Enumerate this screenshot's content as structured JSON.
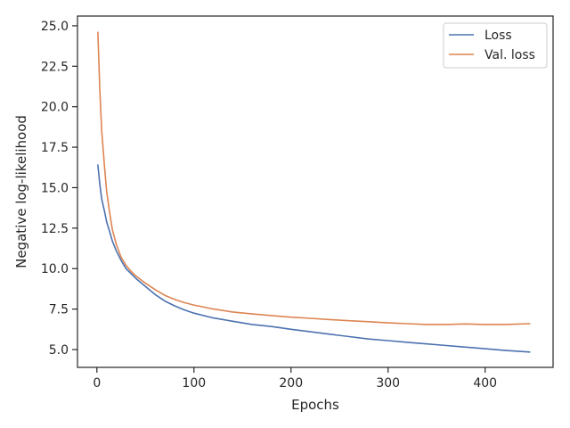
{
  "chart_data": {
    "type": "line",
    "xlabel": "Epochs",
    "ylabel": "Negative log-likelihood",
    "xlim": [
      -20,
      470
    ],
    "ylim": [
      3.9,
      25.6
    ],
    "xticks": [
      0,
      100,
      200,
      300,
      400
    ],
    "yticks": [
      5.0,
      7.5,
      10.0,
      12.5,
      15.0,
      17.5,
      20.0,
      22.5,
      25.0
    ],
    "grid": false,
    "legend": {
      "position": "upper-right"
    },
    "series": [
      {
        "name": "Loss",
        "color": "#4c72b0",
        "points": [
          [
            1,
            16.4
          ],
          [
            3,
            15.2
          ],
          [
            5,
            14.3
          ],
          [
            8,
            13.5
          ],
          [
            10,
            12.9
          ],
          [
            13,
            12.3
          ],
          [
            16,
            11.7
          ],
          [
            20,
            11.1
          ],
          [
            25,
            10.5
          ],
          [
            30,
            10.0
          ],
          [
            35,
            9.7
          ],
          [
            40,
            9.4
          ],
          [
            50,
            8.9
          ],
          [
            60,
            8.4
          ],
          [
            70,
            8.0
          ],
          [
            80,
            7.7
          ],
          [
            90,
            7.45
          ],
          [
            100,
            7.25
          ],
          [
            120,
            6.95
          ],
          [
            140,
            6.75
          ],
          [
            160,
            6.55
          ],
          [
            180,
            6.42
          ],
          [
            200,
            6.25
          ],
          [
            220,
            6.1
          ],
          [
            240,
            5.95
          ],
          [
            260,
            5.8
          ],
          [
            280,
            5.65
          ],
          [
            300,
            5.55
          ],
          [
            320,
            5.45
          ],
          [
            340,
            5.35
          ],
          [
            360,
            5.25
          ],
          [
            380,
            5.15
          ],
          [
            400,
            5.05
          ],
          [
            420,
            4.95
          ],
          [
            446,
            4.85
          ]
        ]
      },
      {
        "name": "Val. loss",
        "color": "#dd8452",
        "points": [
          [
            1,
            24.6
          ],
          [
            3,
            21.0
          ],
          [
            5,
            18.5
          ],
          [
            8,
            16.2
          ],
          [
            10,
            14.8
          ],
          [
            13,
            13.5
          ],
          [
            16,
            12.4
          ],
          [
            20,
            11.5
          ],
          [
            25,
            10.7
          ],
          [
            30,
            10.2
          ],
          [
            35,
            9.85
          ],
          [
            40,
            9.55
          ],
          [
            50,
            9.1
          ],
          [
            60,
            8.7
          ],
          [
            70,
            8.35
          ],
          [
            80,
            8.1
          ],
          [
            90,
            7.9
          ],
          [
            100,
            7.75
          ],
          [
            120,
            7.5
          ],
          [
            140,
            7.32
          ],
          [
            160,
            7.2
          ],
          [
            180,
            7.1
          ],
          [
            200,
            7.0
          ],
          [
            220,
            6.93
          ],
          [
            240,
            6.85
          ],
          [
            260,
            6.78
          ],
          [
            280,
            6.72
          ],
          [
            300,
            6.65
          ],
          [
            320,
            6.6
          ],
          [
            340,
            6.55
          ],
          [
            360,
            6.55
          ],
          [
            380,
            6.58
          ],
          [
            400,
            6.55
          ],
          [
            420,
            6.55
          ],
          [
            446,
            6.6
          ]
        ]
      }
    ]
  }
}
